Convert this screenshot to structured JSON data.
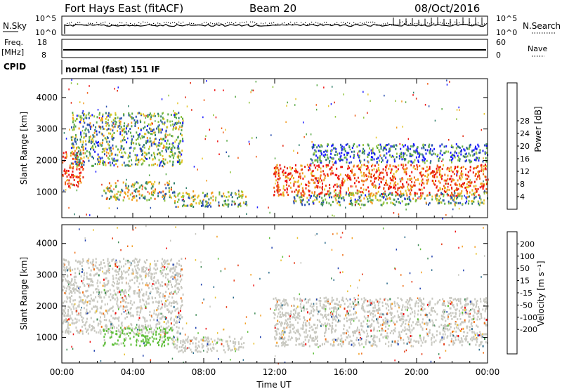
{
  "header": {
    "station": "Fort Hays East (fitACF)",
    "beam": "Beam 20",
    "date": "08/Oct/2016"
  },
  "aux_panels": {
    "noise": {
      "left_label": "N.Sky",
      "right_label": "N.Search",
      "left_ticks": [
        "10^5",
        "10^0"
      ],
      "right_ticks": [
        "10^5",
        "10^0"
      ]
    },
    "freq": {
      "left_label_1": "Freq.",
      "left_label_2": "[MHz]",
      "right_label": "Nave",
      "left_ticks": [
        "18",
        "8"
      ],
      "right_ticks": [
        "60",
        "0"
      ]
    },
    "cpid": {
      "label": "CPID",
      "text": "normal (fast) 151 IF"
    }
  },
  "chart_data": [
    {
      "type": "heatmap",
      "name": "power",
      "ylabel": "Slant Range [km]",
      "xlabel": "Time UT",
      "xlim": [
        0,
        24
      ],
      "ylim": [
        180,
        4600
      ],
      "x_ticks": [
        "00:00",
        "04:00",
        "08:00",
        "12:00",
        "16:00",
        "20:00",
        "00:00"
      ],
      "y_ticks": [
        "1000",
        "2000",
        "3000",
        "4000"
      ],
      "colorbar": {
        "label": "Power [dB]",
        "ticks": [
          "4",
          "8",
          "12",
          "16",
          "20",
          "24",
          "28"
        ],
        "colors": [
          "#1a1aff",
          "#2a4fb0",
          "#2f7e6a",
          "#58a845",
          "#8fc43c",
          "#e6c52a",
          "#f29a1e",
          "#ef5e18",
          "#e22a12",
          "#ee1010"
        ]
      },
      "regions": [
        {
          "t0": 0.0,
          "t1": 1.2,
          "r0": 1150,
          "r1": 2300,
          "level": 0.85
        },
        {
          "t0": 0.5,
          "t1": 6.8,
          "r0": 1850,
          "r1": 3550,
          "level": 0.35
        },
        {
          "t0": 2.3,
          "t1": 6.3,
          "r0": 750,
          "r1": 1350,
          "level": 0.45
        },
        {
          "t0": 6.3,
          "t1": 10.4,
          "r0": 550,
          "r1": 1050,
          "level": 0.4
        },
        {
          "t0": 11.9,
          "t1": 24.0,
          "r0": 900,
          "r1": 1900,
          "level": 0.8
        },
        {
          "t0": 13.0,
          "t1": 24.0,
          "r0": 600,
          "r1": 1000,
          "level": 0.35
        },
        {
          "t0": 14.0,
          "t1": 24.0,
          "r0": 1950,
          "r1": 2550,
          "level": 0.2
        }
      ]
    },
    {
      "type": "heatmap",
      "name": "velocity",
      "ylabel": "Slant Range [km]",
      "xlabel": "Time UT",
      "xlim": [
        0,
        24
      ],
      "ylim": [
        180,
        4600
      ],
      "x_ticks": [
        "00:00",
        "04:00",
        "08:00",
        "12:00",
        "16:00",
        "20:00",
        "00:00"
      ],
      "y_ticks": [
        "1000",
        "2000",
        "3000",
        "4000"
      ],
      "colorbar": {
        "label": "Velocity [m s⁻¹]",
        "ticks": [
          "200",
          "100",
          "50",
          "15",
          "-15",
          "-50",
          "-100",
          "-200"
        ],
        "colors": [
          "#1e3fae",
          "#2f6e8e",
          "#3f8a55",
          "#5fbf3a",
          "#c8c8c0",
          "#e8c030",
          "#f3a024",
          "#ee7018",
          "#e43a14",
          "#ee1010"
        ]
      },
      "regions": [
        {
          "t0": 0.0,
          "t1": 6.8,
          "r0": 1150,
          "r1": 3550,
          "kind": "gray"
        },
        {
          "t0": 2.3,
          "t1": 6.3,
          "r0": 750,
          "r1": 1350,
          "kind": "green"
        },
        {
          "t0": 6.3,
          "t1": 10.4,
          "r0": 550,
          "r1": 1050,
          "kind": "gray"
        },
        {
          "t0": 11.9,
          "t1": 24.0,
          "r0": 750,
          "r1": 2300,
          "kind": "gray"
        }
      ]
    }
  ]
}
